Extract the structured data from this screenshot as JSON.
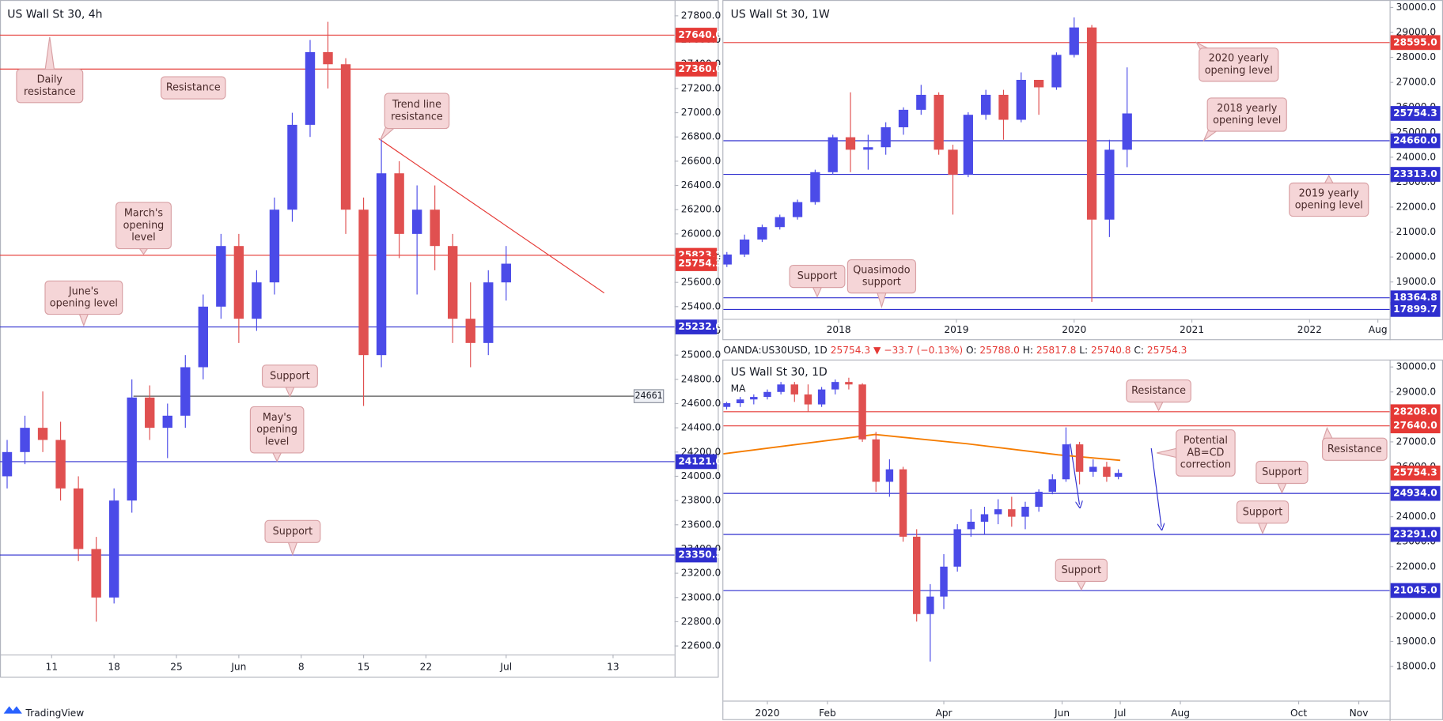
{
  "chart_data": [
    {
      "type": "candlestick",
      "title": "US Wall St 30, 4h",
      "up_color": "#4b4be8",
      "down_color": "#e05050",
      "x": [
        5,
        7,
        9,
        11,
        13,
        15,
        17,
        19,
        21,
        23,
        25,
        27,
        29,
        31,
        33,
        35,
        37,
        39,
        41,
        43,
        45,
        47,
        49,
        51,
        53,
        55,
        57,
        59,
        61
      ],
      "open": [
        24000,
        24200,
        24400,
        24300,
        23900,
        23400,
        23000,
        23800,
        24650,
        24400,
        24500,
        24900,
        25400,
        25900,
        25300,
        25600,
        26200,
        26900,
        27500,
        27400,
        26200,
        25000,
        26500,
        26000,
        26200,
        25900,
        25300,
        25100,
        25600
      ],
      "high": [
        24300,
        24500,
        24700,
        24450,
        24000,
        23500,
        23900,
        24800,
        24750,
        24600,
        25000,
        25500,
        26000,
        26000,
        25700,
        26300,
        27000,
        27600,
        27750,
        27450,
        26300,
        26780,
        26600,
        26400,
        26400,
        26000,
        25600,
        25700,
        25900
      ],
      "low": [
        23900,
        24100,
        24200,
        23800,
        23300,
        22800,
        22950,
        23700,
        24300,
        24150,
        24400,
        24800,
        25300,
        25100,
        25200,
        25500,
        26100,
        26800,
        27200,
        26000,
        24580,
        24900,
        25800,
        25500,
        25700,
        25100,
        24900,
        25000,
        25450
      ],
      "close": [
        24200,
        24400,
        24300,
        23900,
        23400,
        23000,
        23800,
        24650,
        24400,
        24500,
        24900,
        25400,
        25900,
        25300,
        25600,
        26200,
        26900,
        27500,
        27400,
        26200,
        25000,
        26500,
        26000,
        26200,
        25900,
        25300,
        25100,
        25600,
        25754.3
      ],
      "xlim": [
        4.2,
        79.9
      ],
      "ylim": [
        22530,
        27930
      ],
      "xticks": [
        {
          "value": 10,
          "label": "11"
        },
        {
          "value": 17,
          "label": "18"
        },
        {
          "value": 24,
          "label": "25"
        },
        {
          "value": 31,
          "label": "Jun"
        },
        {
          "value": 38,
          "label": "8"
        },
        {
          "value": 45,
          "label": "15"
        },
        {
          "value": 52,
          "label": "22"
        },
        {
          "value": 61,
          "label": "Jul"
        },
        {
          "value": 73,
          "label": "13"
        }
      ],
      "yticks": [
        {
          "value": 22600,
          "label": "22600.0"
        },
        {
          "value": 22800,
          "label": "22800.0"
        },
        {
          "value": 23000,
          "label": "23000.0"
        },
        {
          "value": 23200,
          "label": "23200.0"
        },
        {
          "value": 23400,
          "label": "23400.0"
        },
        {
          "value": 23600,
          "label": "23600.0"
        },
        {
          "value": 23800,
          "label": "23800.0"
        },
        {
          "value": 24000,
          "label": "24000.0"
        },
        {
          "value": 24200,
          "label": "24200.0"
        },
        {
          "value": 24400,
          "label": "24400.0"
        },
        {
          "value": 24600,
          "label": "24600.0"
        },
        {
          "value": 24800,
          "label": "24800.0"
        },
        {
          "value": 25000,
          "label": "25000.0"
        },
        {
          "value": 25200,
          "label": "25200.0"
        },
        {
          "value": 25400,
          "label": "25400.0"
        },
        {
          "value": 25600,
          "label": "25600.0"
        },
        {
          "value": 25800,
          "label": "25800.0"
        },
        {
          "value": 26000,
          "label": "26000.0"
        },
        {
          "value": 26200,
          "label": "26200.0"
        },
        {
          "value": 26400,
          "label": "26400.0"
        },
        {
          "value": 26600,
          "label": "26600.0"
        },
        {
          "value": 26800,
          "label": "26800.0"
        },
        {
          "value": 27000,
          "label": "27000.0"
        },
        {
          "value": 27200,
          "label": "27200.0"
        },
        {
          "value": 27400,
          "label": "27400.0"
        },
        {
          "value": 27600,
          "label": "27600.0"
        },
        {
          "value": 27800,
          "label": "27800.0"
        }
      ],
      "levels": [
        {
          "value": 27640,
          "label": "27640.0",
          "color": "#e53935"
        },
        {
          "value": 27360,
          "label": "27360.0",
          "color": "#e53935"
        },
        {
          "value": 25823.2,
          "label": "25823.2",
          "color": "#e53935"
        },
        {
          "value": 25232,
          "label": "25232.0",
          "color": "#2f2fcf"
        },
        {
          "value": 24661,
          "label": "24661",
          "color": "#555555",
          "label_style": "inline"
        },
        {
          "value": 24121,
          "label": "24121.0",
          "color": "#2f2fcf"
        },
        {
          "value": 23350.5,
          "label": "23350.5",
          "color": "#2f2fcf"
        }
      ],
      "price": {
        "value": 25754.3,
        "label": "25754.3",
        "color": "#e53935"
      },
      "trendline": {
        "x": [
          46.7,
          72.0
        ],
        "values": [
          26786,
          25513
        ],
        "color": "#e53935"
      },
      "annotations": [
        {
          "text": [
            "Daily",
            "resistance"
          ]
        },
        {
          "text": [
            "Resistance"
          ]
        },
        {
          "text": [
            "Trend line",
            "resistance"
          ]
        },
        {
          "text": [
            "March's",
            "opening",
            "level"
          ]
        },
        {
          "text": [
            "June's",
            "opening level"
          ]
        },
        {
          "text": [
            "Support"
          ]
        },
        {
          "text": [
            "May's",
            "opening",
            "level"
          ]
        },
        {
          "text": [
            "Support"
          ]
        }
      ]
    },
    {
      "type": "candlestick",
      "title": "US Wall St 30, 1W",
      "up_color": "#4b4be8",
      "down_color": "#e05050",
      "x": [
        2017.05,
        2017.2,
        2017.35,
        2017.5,
        2017.65,
        2017.8,
        2017.95,
        2018.1,
        2018.25,
        2018.4,
        2018.55,
        2018.7,
        2018.85,
        2018.97,
        2019.1,
        2019.25,
        2019.4,
        2019.55,
        2019.7,
        2019.85,
        2020.0,
        2020.15,
        2020.3,
        2020.45
      ],
      "open": [
        19700,
        20100,
        20700,
        21200,
        21600,
        22200,
        23400,
        24800,
        24300,
        24400,
        25200,
        25900,
        26500,
        24300,
        23300,
        25700,
        26500,
        25500,
        27100,
        26800,
        28100,
        29200,
        21500,
        24300
      ],
      "high": [
        20200,
        20900,
        21300,
        21700,
        22300,
        23500,
        24900,
        26600,
        24900,
        25400,
        26000,
        26900,
        26600,
        24500,
        25800,
        26700,
        26700,
        27400,
        27100,
        28200,
        29600,
        29300,
        24700,
        27600
      ],
      "low": [
        19600,
        20000,
        20600,
        21100,
        21500,
        22100,
        23300,
        23400,
        23500,
        24100,
        24900,
        25700,
        24100,
        21700,
        23200,
        25500,
        24700,
        25400,
        25700,
        26700,
        28000,
        18200,
        20800,
        23600
      ],
      "close": [
        20100,
        20700,
        21200,
        21600,
        22200,
        23400,
        24800,
        24300,
        24400,
        25200,
        25900,
        26500,
        24300,
        23300,
        25700,
        26500,
        25500,
        27100,
        26800,
        28100,
        29200,
        21500,
        24300,
        25754.3
      ],
      "xlim": [
        2017.02,
        2022.68
      ],
      "ylim": [
        17520,
        30300
      ],
      "xticks": [
        2018,
        2019,
        2020,
        2021,
        2022,
        {
          "value": 2022.58,
          "label": "Aug"
        }
      ],
      "yticks": [
        {
          "value": 19000,
          "label": "19000.0"
        },
        {
          "value": 20000,
          "label": "20000.0"
        },
        {
          "value": 21000,
          "label": "21000.0"
        },
        {
          "value": 22000,
          "label": "22000.0"
        },
        {
          "value": 23000,
          "label": "23000.0"
        },
        {
          "value": 24000,
          "label": "24000.0"
        },
        {
          "value": 25000,
          "label": "25000.0"
        },
        {
          "value": 26000,
          "label": "26000.0"
        },
        {
          "value": 27000,
          "label": "27000.0"
        },
        {
          "value": 28000,
          "label": "28000.0"
        },
        {
          "value": 29000,
          "label": "29000.0"
        },
        {
          "value": 30000,
          "label": "30000.0"
        }
      ],
      "levels": [
        {
          "value": 28595,
          "label": "28595.0",
          "color": "#e53935"
        },
        {
          "value": 24660,
          "label": "24660.0",
          "color": "#2f2fcf"
        },
        {
          "value": 23313,
          "label": "23313.0",
          "color": "#2f2fcf"
        },
        {
          "value": 18364.8,
          "label": "18364.8",
          "color": "#2f2fcf"
        },
        {
          "value": 17899.7,
          "label": "17899.7",
          "color": "#2f2fcf"
        }
      ],
      "price": {
        "value": 25754.3,
        "label": "25754.3",
        "color": "#2f2fcf"
      },
      "annotations": [
        {
          "text": [
            "2020 yearly",
            "opening level"
          ]
        },
        {
          "text": [
            "2018 yearly",
            "opening level"
          ]
        },
        {
          "text": [
            "2019 yearly",
            "opening level"
          ]
        },
        {
          "text": [
            "Support"
          ]
        },
        {
          "text": [
            "Quasimodo",
            "support"
          ]
        }
      ]
    },
    {
      "type": "candlestick",
      "title": "US Wall St 30, 1D",
      "up_color": "#4b4be8",
      "down_color": "#e05050",
      "header": {
        "symbol": "OANDA:US30USD, 1D",
        "last": "25754.3",
        "change": "▼ −33.7 (−0.13%)",
        "ohlc": [
          {
            "key": "O:",
            "value": "25788.0"
          },
          {
            "key": "H:",
            "value": "25817.8"
          },
          {
            "key": "L:",
            "value": "25740.8"
          },
          {
            "key": "C:",
            "value": "25754.3"
          }
        ]
      },
      "x": [
        -21,
        -14,
        -7,
        0,
        7,
        14,
        21,
        28,
        35,
        42,
        49,
        56,
        63,
        70,
        77,
        84,
        91,
        98,
        105,
        112,
        119,
        126,
        133,
        140,
        147,
        154,
        161,
        168,
        175,
        181
      ],
      "open": [
        28400,
        28550,
        28700,
        28800,
        29000,
        29300,
        28900,
        28500,
        29100,
        29400,
        29300,
        27100,
        25400,
        25900,
        23200,
        20100,
        20800,
        22000,
        23500,
        23800,
        24100,
        24300,
        24000,
        24400,
        25000,
        25500,
        26900,
        25800,
        26000,
        25600
      ],
      "high": [
        28600,
        28800,
        28900,
        29100,
        29400,
        29400,
        29300,
        29200,
        29500,
        29570,
        29350,
        27400,
        26300,
        26000,
        23500,
        21300,
        22500,
        23700,
        24300,
        24400,
        24700,
        24800,
        24600,
        25100,
        25700,
        27580,
        27000,
        26300,
        26200,
        25900
      ],
      "low": [
        28300,
        28400,
        28500,
        28700,
        28900,
        28600,
        28200,
        28400,
        28900,
        29100,
        27000,
        25000,
        24800,
        23000,
        19800,
        18200,
        20300,
        21800,
        23200,
        23300,
        23700,
        23600,
        23500,
        24200,
        24900,
        25400,
        25300,
        25600,
        25400,
        25500
      ],
      "close": [
        28550,
        28700,
        28800,
        29000,
        29300,
        28900,
        28500,
        29100,
        29400,
        29300,
        27100,
        25400,
        25900,
        23200,
        20100,
        20800,
        22000,
        23500,
        23800,
        24100,
        24300,
        24000,
        24400,
        25000,
        25500,
        26900,
        25800,
        26000,
        25600,
        25754.3
      ],
      "xlim": [
        -22.7,
        320.9
      ],
      "ylim": [
        16630,
        30260
      ],
      "xticks": [
        {
          "value": 0,
          "label": "2020"
        },
        {
          "value": 31,
          "label": "Feb"
        },
        {
          "value": 91,
          "label": "Apr"
        },
        {
          "value": 152,
          "label": "Jun"
        },
        {
          "value": 182,
          "label": "Jul"
        },
        {
          "value": 213,
          "label": "Aug"
        },
        {
          "value": 274,
          "label": "Oct"
        },
        {
          "value": 305,
          "label": "Nov"
        }
      ],
      "yticks": [
        {
          "value": 18000,
          "label": "18000.0"
        },
        {
          "value": 19000,
          "label": "19000.0"
        },
        {
          "value": 20000,
          "label": "20000.0"
        },
        {
          "value": 21000,
          "label": "21000.0"
        },
        {
          "value": 22000,
          "label": "22000.0"
        },
        {
          "value": 23000,
          "label": "23000.0"
        },
        {
          "value": 24000,
          "label": "24000.0"
        },
        {
          "value": 25000,
          "label": "25000.0"
        },
        {
          "value": 26000,
          "label": "26000.0"
        },
        {
          "value": 27000,
          "label": "27000.0"
        },
        {
          "value": 28000,
          "label": "28000.0"
        },
        {
          "value": 29000,
          "label": "29000.0"
        },
        {
          "value": 30000,
          "label": "30000.0"
        }
      ],
      "levels": [
        {
          "value": 28208,
          "label": "28208.0",
          "color": "#e53935"
        },
        {
          "value": 27640,
          "label": "27640.0",
          "color": "#e53935"
        },
        {
          "value": 24934,
          "label": "24934.0",
          "color": "#2f2fcf"
        },
        {
          "value": 23291,
          "label": "23291.0",
          "color": "#2f2fcf"
        },
        {
          "value": 21045,
          "label": "21045.0",
          "color": "#2f2fcf"
        }
      ],
      "price": {
        "value": 25754.3,
        "label": "25754.3",
        "color": "#e53935"
      },
      "ma": {
        "name": "MA",
        "x": [
          -22.7,
          55.5,
          102.8,
          150,
          182
        ],
        "values": [
          26519,
          27296,
          26926,
          26481,
          26259
        ],
        "color": "#f57c00"
      },
      "annotations": [
        {
          "text": [
            "Resistance"
          ]
        },
        {
          "text": [
            "Potential",
            "AB=CD",
            "correction"
          ]
        },
        {
          "text": [
            "Resistance"
          ]
        },
        {
          "text": [
            "Support"
          ]
        },
        {
          "text": [
            "Support"
          ]
        },
        {
          "text": [
            "Support"
          ]
        }
      ]
    }
  ],
  "footer": {
    "brand": "TradingView"
  }
}
